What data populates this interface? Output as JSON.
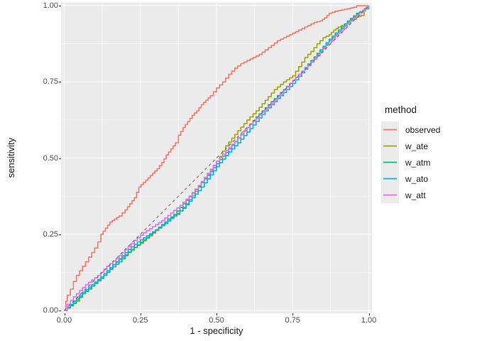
{
  "chart_data": {
    "type": "line",
    "subtype": "roc-curves",
    "title": "",
    "xlabel": "1 - specificity",
    "ylabel": "sensitivity",
    "xlim": [
      0,
      1
    ],
    "ylim": [
      0,
      1
    ],
    "grid": "major+minor",
    "x_tick_values": [
      0,
      0.25,
      0.5,
      0.75,
      1.0
    ],
    "x_tick_labels": [
      "0.00",
      "0.25",
      "0.50",
      "0.75",
      "1.00"
    ],
    "y_tick_values": [
      0,
      0.25,
      0.5,
      0.75,
      1.0
    ],
    "y_tick_labels": [
      "0.00",
      "0.25",
      "0.50",
      "0.75",
      "1.00"
    ],
    "minor_tick_values": [
      0.125,
      0.375,
      0.625,
      0.875
    ],
    "legend_title": "method",
    "legend_position": "right",
    "reference_line": {
      "style": "dashed",
      "from": [
        0,
        0
      ],
      "to": [
        1,
        1
      ],
      "color": "#707070"
    },
    "series": [
      {
        "name": "observed",
        "color": "#F8766D",
        "points": [
          [
            0,
            0
          ],
          [
            0.005,
            0.03
          ],
          [
            0.01,
            0.05
          ],
          [
            0.02,
            0.07
          ],
          [
            0.03,
            0.095
          ],
          [
            0.04,
            0.115
          ],
          [
            0.05,
            0.13
          ],
          [
            0.06,
            0.145
          ],
          [
            0.07,
            0.16
          ],
          [
            0.08,
            0.175
          ],
          [
            0.09,
            0.19
          ],
          [
            0.1,
            0.205
          ],
          [
            0.11,
            0.225
          ],
          [
            0.12,
            0.25
          ],
          [
            0.135,
            0.27
          ],
          [
            0.15,
            0.29
          ],
          [
            0.165,
            0.3
          ],
          [
            0.18,
            0.31
          ],
          [
            0.2,
            0.33
          ],
          [
            0.215,
            0.35
          ],
          [
            0.23,
            0.37
          ],
          [
            0.245,
            0.405
          ],
          [
            0.26,
            0.42
          ],
          [
            0.275,
            0.435
          ],
          [
            0.29,
            0.45
          ],
          [
            0.305,
            0.465
          ],
          [
            0.32,
            0.485
          ],
          [
            0.335,
            0.51
          ],
          [
            0.35,
            0.53
          ],
          [
            0.365,
            0.55
          ],
          [
            0.375,
            0.575
          ],
          [
            0.39,
            0.6
          ],
          [
            0.405,
            0.62
          ],
          [
            0.42,
            0.64
          ],
          [
            0.435,
            0.655
          ],
          [
            0.45,
            0.675
          ],
          [
            0.465,
            0.69
          ],
          [
            0.48,
            0.705
          ],
          [
            0.5,
            0.73
          ],
          [
            0.52,
            0.75
          ],
          [
            0.54,
            0.775
          ],
          [
            0.56,
            0.795
          ],
          [
            0.58,
            0.81
          ],
          [
            0.6,
            0.82
          ],
          [
            0.62,
            0.83
          ],
          [
            0.64,
            0.84
          ],
          [
            0.66,
            0.855
          ],
          [
            0.68,
            0.87
          ],
          [
            0.7,
            0.885
          ],
          [
            0.72,
            0.895
          ],
          [
            0.74,
            0.905
          ],
          [
            0.76,
            0.915
          ],
          [
            0.78,
            0.925
          ],
          [
            0.8,
            0.935
          ],
          [
            0.82,
            0.945
          ],
          [
            0.84,
            0.95
          ],
          [
            0.855,
            0.96
          ],
          [
            0.87,
            0.975
          ],
          [
            0.89,
            0.982
          ],
          [
            0.91,
            0.986
          ],
          [
            0.93,
            0.99
          ],
          [
            0.95,
            0.995
          ],
          [
            0.96,
            1.0
          ],
          [
            1.0,
            1.0
          ]
        ]
      },
      {
        "name": "w_ate",
        "color": "#A3A500",
        "points": [
          [
            0,
            0
          ],
          [
            0.02,
            0.015
          ],
          [
            0.04,
            0.03
          ],
          [
            0.06,
            0.055
          ],
          [
            0.08,
            0.07
          ],
          [
            0.1,
            0.09
          ],
          [
            0.13,
            0.12
          ],
          [
            0.16,
            0.15
          ],
          [
            0.19,
            0.175
          ],
          [
            0.22,
            0.2
          ],
          [
            0.25,
            0.22
          ],
          [
            0.28,
            0.245
          ],
          [
            0.31,
            0.27
          ],
          [
            0.34,
            0.3
          ],
          [
            0.37,
            0.315
          ],
          [
            0.4,
            0.35
          ],
          [
            0.43,
            0.39
          ],
          [
            0.45,
            0.42
          ],
          [
            0.47,
            0.445
          ],
          [
            0.49,
            0.475
          ],
          [
            0.51,
            0.505
          ],
          [
            0.53,
            0.54
          ],
          [
            0.55,
            0.565
          ],
          [
            0.57,
            0.59
          ],
          [
            0.6,
            0.625
          ],
          [
            0.63,
            0.655
          ],
          [
            0.66,
            0.69
          ],
          [
            0.69,
            0.725
          ],
          [
            0.72,
            0.75
          ],
          [
            0.75,
            0.77
          ],
          [
            0.77,
            0.8
          ],
          [
            0.79,
            0.83
          ],
          [
            0.81,
            0.85
          ],
          [
            0.83,
            0.875
          ],
          [
            0.85,
            0.895
          ],
          [
            0.87,
            0.905
          ],
          [
            0.885,
            0.92
          ],
          [
            0.9,
            0.93
          ],
          [
            0.92,
            0.94
          ],
          [
            0.94,
            0.95
          ],
          [
            0.96,
            0.962
          ],
          [
            0.975,
            0.968
          ],
          [
            0.985,
            0.99
          ],
          [
            1,
            1
          ]
        ]
      },
      {
        "name": "w_atm",
        "color": "#00BF7D",
        "points": [
          [
            0,
            0
          ],
          [
            0.03,
            0.025
          ],
          [
            0.06,
            0.055
          ],
          [
            0.09,
            0.08
          ],
          [
            0.12,
            0.105
          ],
          [
            0.15,
            0.135
          ],
          [
            0.18,
            0.16
          ],
          [
            0.21,
            0.19
          ],
          [
            0.24,
            0.215
          ],
          [
            0.27,
            0.24
          ],
          [
            0.3,
            0.265
          ],
          [
            0.33,
            0.29
          ],
          [
            0.36,
            0.315
          ],
          [
            0.39,
            0.35
          ],
          [
            0.42,
            0.385
          ],
          [
            0.45,
            0.42
          ],
          [
            0.48,
            0.455
          ],
          [
            0.51,
            0.495
          ],
          [
            0.54,
            0.53
          ],
          [
            0.57,
            0.565
          ],
          [
            0.6,
            0.6
          ],
          [
            0.63,
            0.635
          ],
          [
            0.66,
            0.665
          ],
          [
            0.69,
            0.695
          ],
          [
            0.72,
            0.725
          ],
          [
            0.75,
            0.755
          ],
          [
            0.78,
            0.785
          ],
          [
            0.81,
            0.82
          ],
          [
            0.84,
            0.855
          ],
          [
            0.87,
            0.89
          ],
          [
            0.9,
            0.92
          ],
          [
            0.93,
            0.95
          ],
          [
            0.96,
            0.975
          ],
          [
            0.98,
            0.985
          ],
          [
            1,
            1
          ]
        ]
      },
      {
        "name": "w_ato",
        "color": "#00B0F6",
        "points": [
          [
            0,
            0
          ],
          [
            0.03,
            0.03
          ],
          [
            0.06,
            0.06
          ],
          [
            0.09,
            0.085
          ],
          [
            0.12,
            0.11
          ],
          [
            0.15,
            0.14
          ],
          [
            0.18,
            0.17
          ],
          [
            0.21,
            0.2
          ],
          [
            0.24,
            0.225
          ],
          [
            0.27,
            0.245
          ],
          [
            0.3,
            0.265
          ],
          [
            0.33,
            0.285
          ],
          [
            0.36,
            0.31
          ],
          [
            0.39,
            0.335
          ],
          [
            0.42,
            0.37
          ],
          [
            0.45,
            0.405
          ],
          [
            0.48,
            0.445
          ],
          [
            0.51,
            0.485
          ],
          [
            0.54,
            0.52
          ],
          [
            0.57,
            0.55
          ],
          [
            0.6,
            0.585
          ],
          [
            0.63,
            0.62
          ],
          [
            0.66,
            0.655
          ],
          [
            0.69,
            0.685
          ],
          [
            0.72,
            0.715
          ],
          [
            0.75,
            0.745
          ],
          [
            0.78,
            0.78
          ],
          [
            0.81,
            0.815
          ],
          [
            0.84,
            0.85
          ],
          [
            0.87,
            0.885
          ],
          [
            0.9,
            0.915
          ],
          [
            0.93,
            0.945
          ],
          [
            0.96,
            0.972
          ],
          [
            0.99,
            0.99
          ],
          [
            1,
            1
          ]
        ]
      },
      {
        "name": "w_att",
        "color": "#E76BF3",
        "points": [
          [
            0,
            0
          ],
          [
            0.01,
            0.02
          ],
          [
            0.03,
            0.045
          ],
          [
            0.05,
            0.065
          ],
          [
            0.07,
            0.085
          ],
          [
            0.09,
            0.1
          ],
          [
            0.11,
            0.115
          ],
          [
            0.14,
            0.145
          ],
          [
            0.17,
            0.17
          ],
          [
            0.2,
            0.2
          ],
          [
            0.23,
            0.23
          ],
          [
            0.26,
            0.255
          ],
          [
            0.29,
            0.275
          ],
          [
            0.32,
            0.295
          ],
          [
            0.35,
            0.32
          ],
          [
            0.38,
            0.345
          ],
          [
            0.41,
            0.375
          ],
          [
            0.44,
            0.41
          ],
          [
            0.47,
            0.45
          ],
          [
            0.5,
            0.49
          ],
          [
            0.53,
            0.525
          ],
          [
            0.56,
            0.555
          ],
          [
            0.59,
            0.59
          ],
          [
            0.62,
            0.62
          ],
          [
            0.65,
            0.65
          ],
          [
            0.68,
            0.68
          ],
          [
            0.71,
            0.71
          ],
          [
            0.74,
            0.745
          ],
          [
            0.77,
            0.775
          ],
          [
            0.8,
            0.805
          ],
          [
            0.83,
            0.835
          ],
          [
            0.86,
            0.87
          ],
          [
            0.89,
            0.9
          ],
          [
            0.92,
            0.93
          ],
          [
            0.95,
            0.96
          ],
          [
            0.98,
            0.985
          ],
          [
            1,
            1
          ]
        ]
      }
    ]
  },
  "colors": {
    "page_bg": "#FFFFFF",
    "panel_bg": "#EBEBEB",
    "grid_major": "#FFFFFF",
    "grid_minor": "#FFFFFF",
    "axis_text": "#4D4D4D",
    "title_text": "#1A1A1A",
    "tick_mark": "#333333",
    "legend_key_bg": "#EBEBEB"
  }
}
